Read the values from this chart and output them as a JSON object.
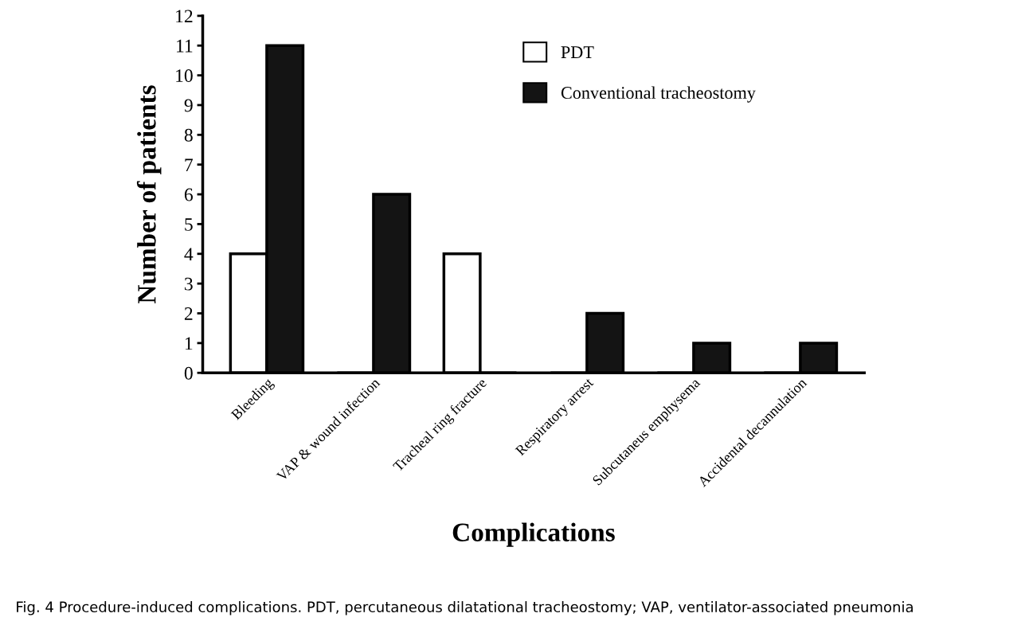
{
  "chart_data": {
    "type": "bar",
    "xlabel": "Complications",
    "ylabel": "Number of patients",
    "categories": [
      "Bleeding",
      "VAP & wound infection",
      "Tracheal ring fracture",
      "Respiratory arrest",
      "Subcutaneus emphysema",
      "Accidental decannulation"
    ],
    "series": [
      {
        "name": "PDT",
        "color": "#ffffff",
        "values": [
          4,
          0,
          4,
          0,
          0,
          0
        ]
      },
      {
        "name": "Conventional tracheostomy",
        "color": "#141414",
        "values": [
          11,
          6,
          0,
          2,
          1,
          1
        ]
      }
    ],
    "ylim": [
      0,
      12
    ],
    "yticks": [
      0,
      1,
      2,
      3,
      4,
      5,
      6,
      7,
      8,
      9,
      10,
      11,
      12
    ],
    "grid": false,
    "legend": "top right",
    "annotations": [
      "Fig. 4 Procedure-induced complications. PDT, percutaneous dilatational tracheostomy; VAP, ventilator-associated pneumonia"
    ]
  }
}
